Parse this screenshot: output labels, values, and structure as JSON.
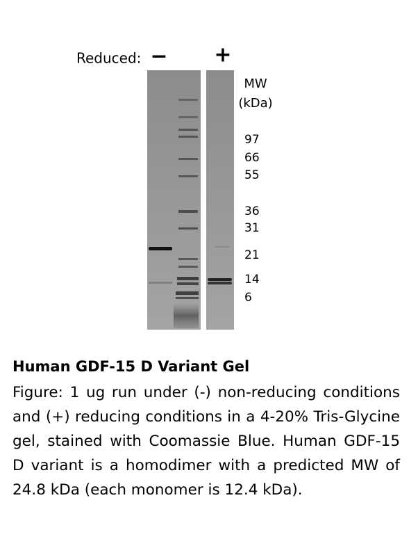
{
  "figure": {
    "reduced_label": "Reduced:",
    "lane_labels": [
      "−",
      "+"
    ],
    "mw_label": "MW",
    "mw_unit": "(kDa)",
    "markers": [
      97,
      66,
      55,
      36,
      31,
      21,
      14,
      6
    ]
  },
  "caption": {
    "title": "Human GDF-15 D Variant Gel",
    "text": "Figure: 1 ug run under (-) non-reducing conditions and (+) reducing conditions in a 4-20% Tris-Glycine gel, stained with Coomassie Blue. Human GDF-15 D variant is a homodimer with a predicted MW of 24.8 kDa (each monomer is 12.4 kDa)."
  }
}
